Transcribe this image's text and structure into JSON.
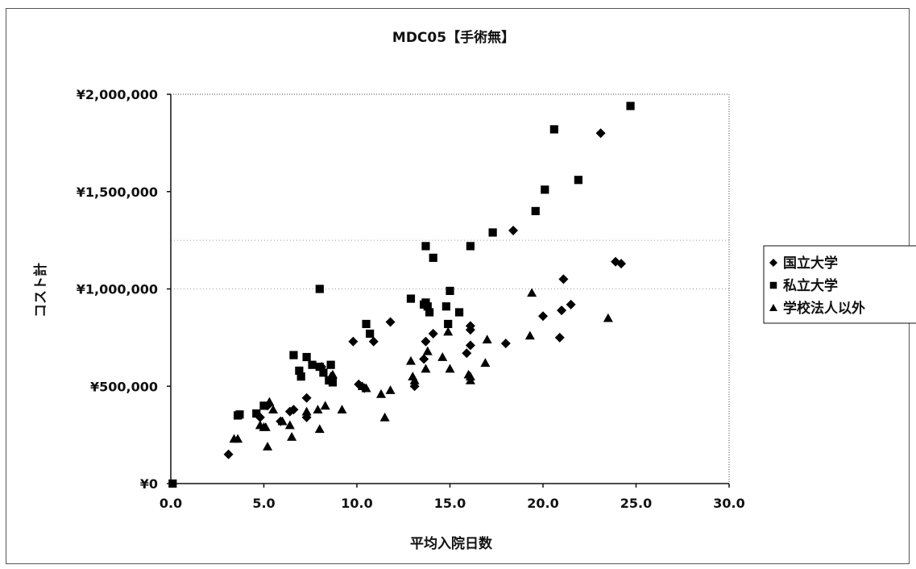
{
  "chart_data": {
    "type": "scatter",
    "title": "MDC05【手術無】",
    "xlabel": "平均入院日数",
    "ylabel": "コスト計",
    "xlim": [
      0,
      30
    ],
    "ylim": [
      0,
      2000000
    ],
    "xticks": [
      "0.0",
      "5.0",
      "10.0",
      "15.0",
      "20.0",
      "25.0",
      "30.0"
    ],
    "yticks": [
      "¥0",
      "¥500,000",
      "¥1,000,000",
      "¥1,500,000",
      "¥2,000,000"
    ],
    "legend_position": "right",
    "series": [
      {
        "name": "国立大学",
        "marker": "diamond",
        "color": "#000000",
        "points": [
          [
            3.1,
            150000
          ],
          [
            4.8,
            340000
          ],
          [
            5.2,
            400000
          ],
          [
            5.9,
            320000
          ],
          [
            6.4,
            370000
          ],
          [
            6.6,
            380000
          ],
          [
            7.3,
            340000
          ],
          [
            7.3,
            440000
          ],
          [
            8.1,
            600000
          ],
          [
            9.8,
            730000
          ],
          [
            10.1,
            510000
          ],
          [
            10.4,
            490000
          ],
          [
            10.9,
            730000
          ],
          [
            11.8,
            830000
          ],
          [
            13.1,
            500000
          ],
          [
            13.6,
            640000
          ],
          [
            13.7,
            730000
          ],
          [
            14.1,
            770000
          ],
          [
            15.9,
            670000
          ],
          [
            16.1,
            710000
          ],
          [
            16.1,
            790000
          ],
          [
            16.1,
            810000
          ],
          [
            18.0,
            720000
          ],
          [
            18.4,
            1300000
          ],
          [
            20.0,
            860000
          ],
          [
            20.9,
            750000
          ],
          [
            21.0,
            890000
          ],
          [
            21.1,
            1050000
          ],
          [
            21.5,
            920000
          ],
          [
            23.1,
            1800000
          ],
          [
            23.9,
            1140000
          ],
          [
            24.2,
            1130000
          ]
        ]
      },
      {
        "name": "私立大学",
        "marker": "square",
        "color": "#000000",
        "points": [
          [
            0.1,
            0
          ],
          [
            3.6,
            350000
          ],
          [
            3.7,
            355000
          ],
          [
            4.6,
            360000
          ],
          [
            5.0,
            400000
          ],
          [
            6.6,
            660000
          ],
          [
            6.9,
            580000
          ],
          [
            7.0,
            550000
          ],
          [
            7.3,
            650000
          ],
          [
            7.6,
            610000
          ],
          [
            8.0,
            1000000
          ],
          [
            8.0,
            600000
          ],
          [
            8.2,
            570000
          ],
          [
            8.5,
            530000
          ],
          [
            8.6,
            610000
          ],
          [
            8.7,
            520000
          ],
          [
            10.5,
            820000
          ],
          [
            10.7,
            770000
          ],
          [
            12.9,
            950000
          ],
          [
            13.6,
            920000
          ],
          [
            13.7,
            1220000
          ],
          [
            13.7,
            930000
          ],
          [
            13.8,
            910000
          ],
          [
            13.9,
            880000
          ],
          [
            14.1,
            1160000
          ],
          [
            14.8,
            910000
          ],
          [
            14.9,
            820000
          ],
          [
            15.0,
            990000
          ],
          [
            15.5,
            880000
          ],
          [
            16.1,
            1220000
          ],
          [
            17.3,
            1290000
          ],
          [
            19.6,
            1400000
          ],
          [
            20.1,
            1510000
          ],
          [
            20.6,
            1820000
          ],
          [
            21.9,
            1560000
          ],
          [
            24.7,
            1940000
          ]
        ]
      },
      {
        "name": "学校法人以外",
        "marker": "triangle",
        "color": "#000000",
        "points": [
          [
            3.4,
            230000
          ],
          [
            3.6,
            230000
          ],
          [
            4.8,
            300000
          ],
          [
            5.0,
            290000
          ],
          [
            5.1,
            290000
          ],
          [
            5.2,
            190000
          ],
          [
            5.3,
            420000
          ],
          [
            5.5,
            380000
          ],
          [
            6.0,
            320000
          ],
          [
            6.4,
            300000
          ],
          [
            6.5,
            240000
          ],
          [
            7.3,
            370000
          ],
          [
            7.9,
            380000
          ],
          [
            8.0,
            280000
          ],
          [
            8.3,
            400000
          ],
          [
            8.6,
            550000
          ],
          [
            8.7,
            560000
          ],
          [
            9.2,
            380000
          ],
          [
            10.3,
            500000
          ],
          [
            10.5,
            490000
          ],
          [
            11.3,
            460000
          ],
          [
            11.5,
            340000
          ],
          [
            11.8,
            480000
          ],
          [
            12.9,
            630000
          ],
          [
            13.0,
            550000
          ],
          [
            13.1,
            530000
          ],
          [
            13.7,
            590000
          ],
          [
            13.8,
            680000
          ],
          [
            14.6,
            650000
          ],
          [
            14.9,
            780000
          ],
          [
            15.0,
            590000
          ],
          [
            16.0,
            560000
          ],
          [
            16.1,
            550000
          ],
          [
            16.1,
            530000
          ],
          [
            16.9,
            620000
          ],
          [
            17.0,
            740000
          ],
          [
            19.3,
            760000
          ],
          [
            19.4,
            980000
          ],
          [
            23.5,
            850000
          ]
        ]
      }
    ]
  }
}
